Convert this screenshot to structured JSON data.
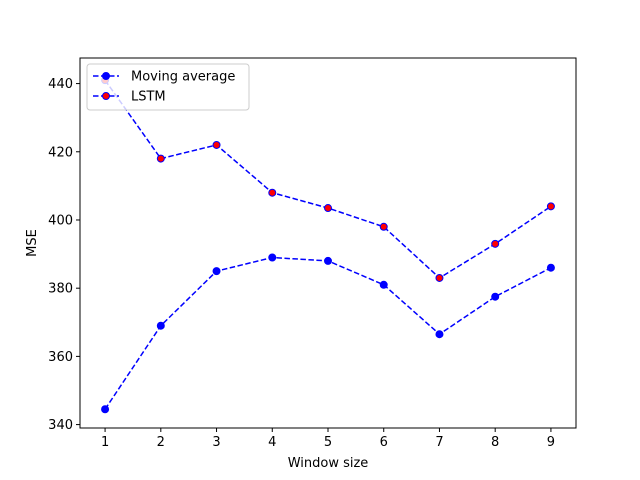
{
  "chart_data": {
    "type": "line",
    "title": "",
    "xlabel": "Window size",
    "ylabel": "MSE",
    "x": [
      1,
      2,
      3,
      4,
      5,
      6,
      7,
      8,
      9
    ],
    "xticks": [
      "1",
      "2",
      "3",
      "4",
      "5",
      "6",
      "7",
      "8",
      "9"
    ],
    "yticks": [
      "340",
      "360",
      "380",
      "400",
      "420",
      "440"
    ],
    "xlim": [
      0.55,
      9.45
    ],
    "ylim": [
      339,
      447.5
    ],
    "grid": false,
    "legend_position": "top-left",
    "series": [
      {
        "name": "Moving average",
        "values": [
          344.5,
          369,
          385,
          389,
          388,
          381,
          366.5,
          377.5,
          386
        ],
        "line_color": "#0000ff",
        "marker_face": "#0000ff",
        "marker_edge": "#0000ff",
        "line_style": "dashed"
      },
      {
        "name": "LSTM",
        "values": [
          441,
          418,
          422,
          408,
          403.5,
          398,
          383,
          393,
          404
        ],
        "line_color": "#0000ff",
        "marker_face": "#ff0000",
        "marker_edge": "#0000ff",
        "line_style": "dashed"
      }
    ]
  }
}
